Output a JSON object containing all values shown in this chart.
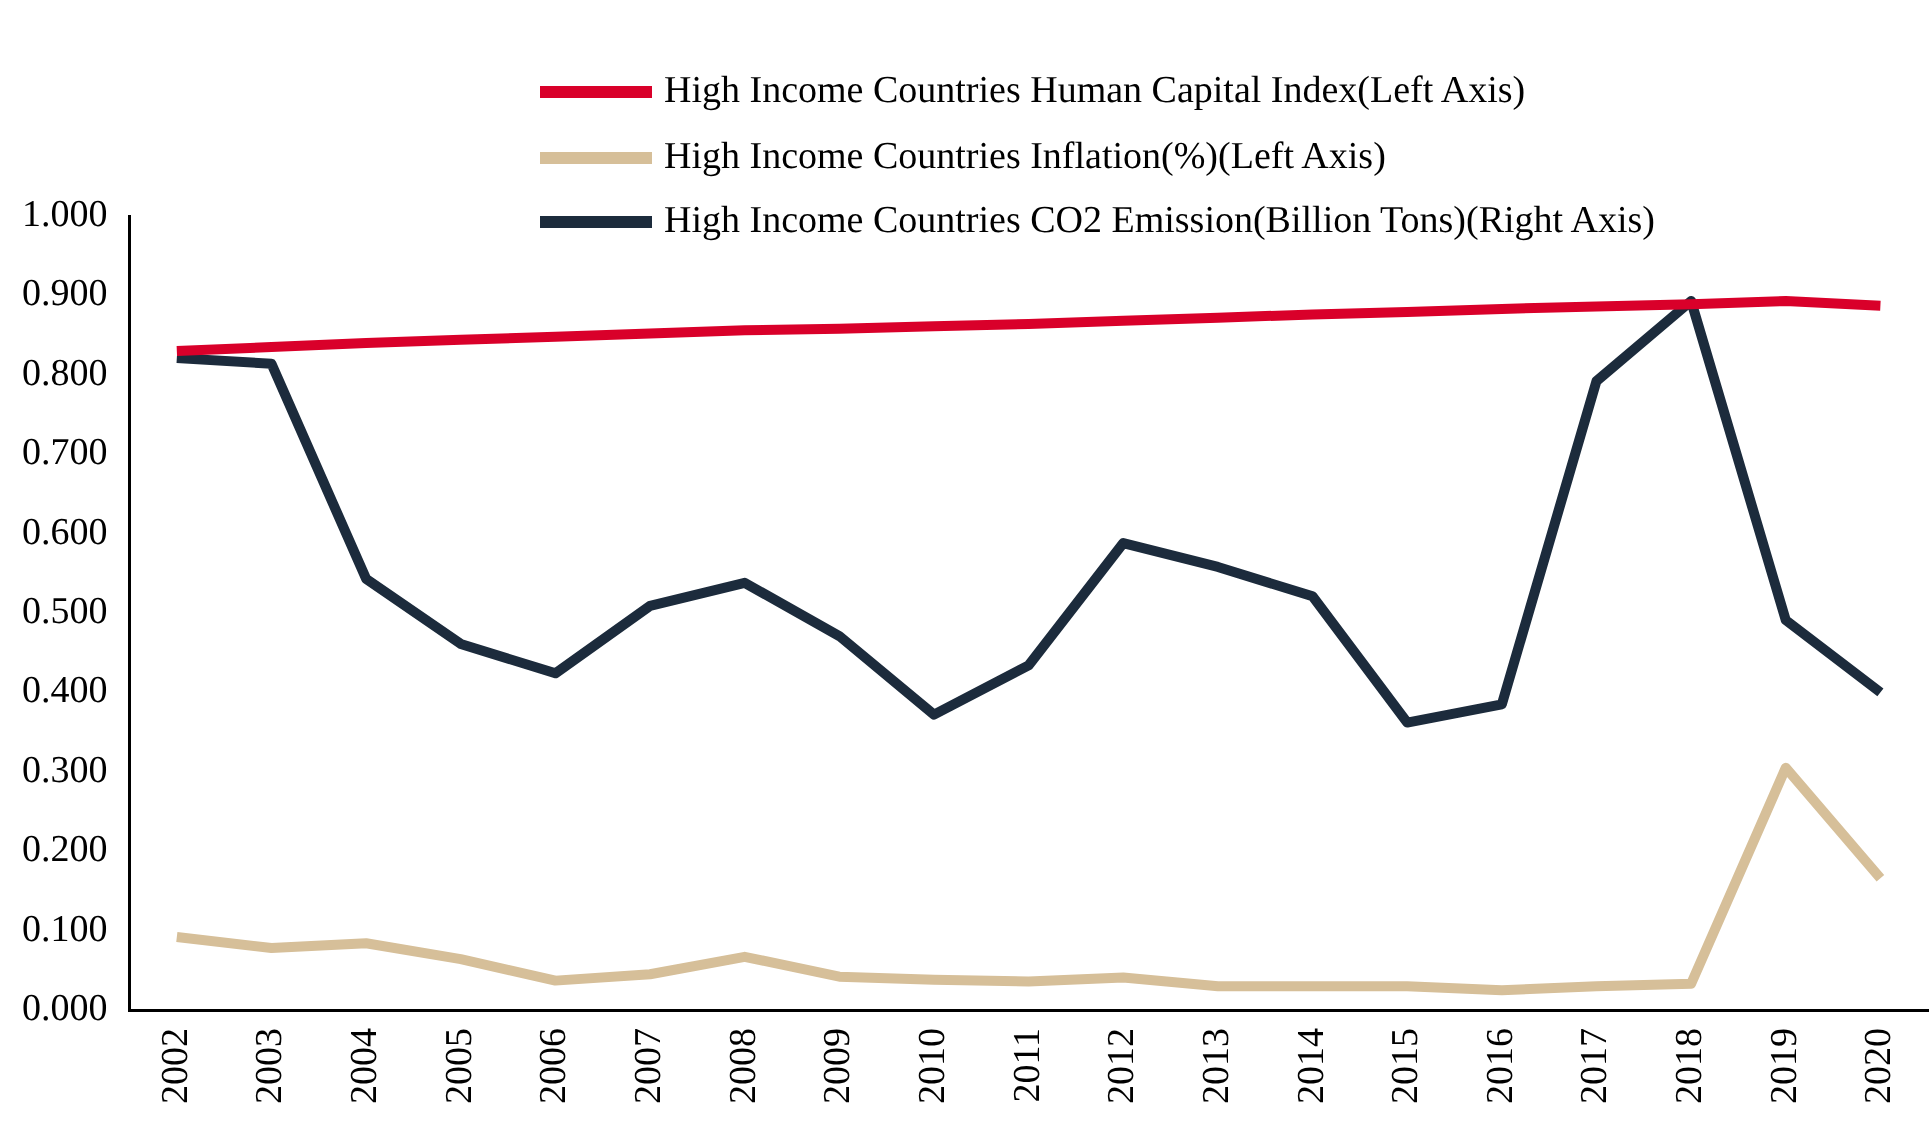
{
  "chart_data": {
    "type": "line",
    "categories": [
      "2002",
      "2003",
      "2004",
      "2005",
      "2006",
      "2007",
      "2008",
      "2009",
      "2010",
      "2011",
      "2012",
      "2013",
      "2014",
      "2015",
      "2016",
      "2017",
      "2018",
      "2019",
      "2020"
    ],
    "series": [
      {
        "name": "High Income Countries Human Capital Index(Left Axis)",
        "color": "#d9002a",
        "values": [
          0.83,
          0.835,
          0.84,
          0.844,
          0.848,
          0.852,
          0.856,
          0.858,
          0.861,
          0.864,
          0.868,
          0.872,
          0.876,
          0.879,
          0.883,
          0.886,
          0.889,
          0.893,
          0.887
        ]
      },
      {
        "name": "High Income Countries Inflation(%)(Left Axis)",
        "color": "#d6bf99",
        "values": [
          0.092,
          0.078,
          0.084,
          0.064,
          0.037,
          0.045,
          0.067,
          0.042,
          0.038,
          0.036,
          0.041,
          0.03,
          0.03,
          0.03,
          0.025,
          0.03,
          0.033,
          0.305,
          0.166
        ]
      },
      {
        "name": "High Income Countries CO2 Emission(Billion Tons)(Right Axis)",
        "color": "#1c2b3c",
        "values": [
          0.821,
          0.814,
          0.543,
          0.461,
          0.424,
          0.509,
          0.538,
          0.471,
          0.372,
          0.434,
          0.588,
          0.558,
          0.521,
          0.362,
          0.385,
          0.792,
          0.893,
          0.491,
          0.4
        ]
      }
    ],
    "ylim": [
      0,
      1
    ],
    "yticks": [
      {
        "value": 0,
        "label": "0.000"
      },
      {
        "value": 0.1,
        "label": "0.100"
      },
      {
        "value": 0.2,
        "label": "0.200"
      },
      {
        "value": 0.3,
        "label": "0.300"
      },
      {
        "value": 0.4,
        "label": "0.400"
      },
      {
        "value": 0.5,
        "label": "0.500"
      },
      {
        "value": 0.6,
        "label": "0.600"
      },
      {
        "value": 0.7,
        "label": "0.700"
      },
      {
        "value": 0.8,
        "label": "0.800"
      },
      {
        "value": 0.9,
        "label": "0.900"
      },
      {
        "value": 1,
        "label": "1.000"
      }
    ],
    "grid": false,
    "legend": "top",
    "marker": "none",
    "line_style": "solid"
  }
}
